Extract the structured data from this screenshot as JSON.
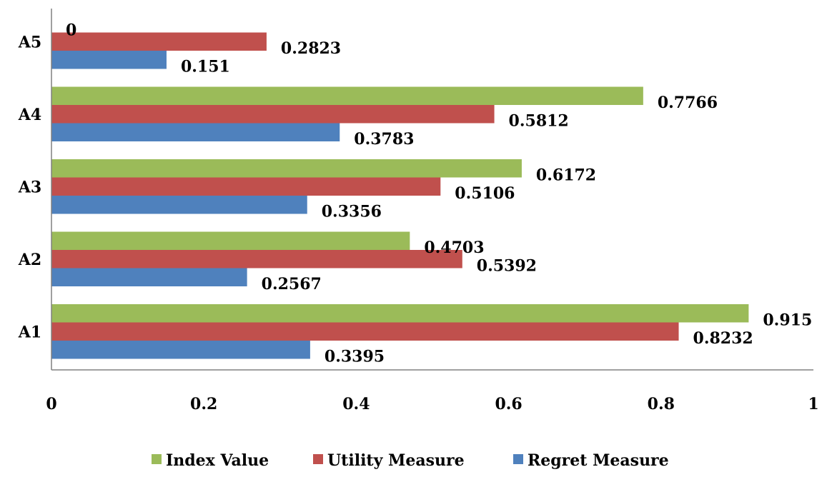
{
  "chart_data": {
    "type": "bar",
    "orientation": "horizontal",
    "title": "",
    "xlabel": "",
    "ylabel": "",
    "categories": [
      "A5",
      "A4",
      "A3",
      "A2",
      "A1"
    ],
    "series": [
      {
        "name": "Index Value",
        "color": "#9bbb59",
        "values": [
          0,
          0.7766,
          0.6172,
          0.4703,
          0.915
        ],
        "labels": [
          "0",
          "0.7766",
          "0.6172",
          "0.4703",
          "0.915"
        ]
      },
      {
        "name": "Utility Measure",
        "color": "#c0504d",
        "values": [
          0.2823,
          0.5812,
          0.5106,
          0.5392,
          0.8232
        ],
        "labels": [
          "0.2823",
          "0.5812",
          "0.5106",
          "0.5392",
          "0.8232"
        ]
      },
      {
        "name": "Regret Measure",
        "color": "#4f81bd",
        "values": [
          0.151,
          0.3783,
          0.3356,
          0.2567,
          0.3395
        ],
        "labels": [
          "0.151",
          "0.3783",
          "0.3356",
          "0.2567",
          "0.3395"
        ]
      }
    ],
    "xlim": [
      0,
      1
    ],
    "xticks": [
      "0",
      "0.2",
      "0.4",
      "0.6",
      "0.8",
      "1"
    ],
    "grid": false,
    "legend_position": "bottom"
  }
}
